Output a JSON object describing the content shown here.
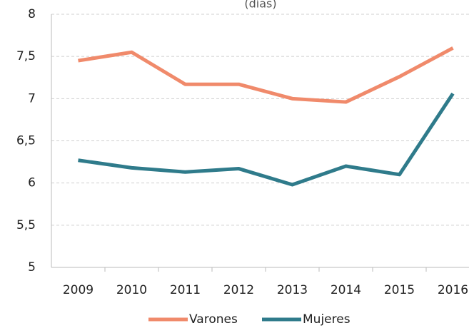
{
  "chart_data": {
    "type": "line",
    "subtitle": "(días)",
    "categories": [
      "2009",
      "2010",
      "2011",
      "2012",
      "2013",
      "2014",
      "2015",
      "2016"
    ],
    "series": [
      {
        "name": "Varones",
        "color": "#f08a6b",
        "values": [
          7.45,
          7.55,
          7.17,
          7.17,
          7.0,
          6.96,
          7.26,
          7.6
        ]
      },
      {
        "name": "Mujeres",
        "color": "#2f7b8b",
        "values": [
          6.27,
          6.18,
          6.13,
          6.17,
          5.98,
          6.2,
          6.1,
          7.06
        ]
      }
    ],
    "ylim": [
      5,
      8
    ],
    "yticks": [
      5,
      {
        "value": 5.5,
        "label": "5,5"
      },
      6,
      {
        "value": 6.5,
        "label": "6,5"
      },
      7,
      {
        "value": 7.5,
        "label": "7,5"
      },
      8
    ],
    "grid": true,
    "legend": "bottom"
  }
}
